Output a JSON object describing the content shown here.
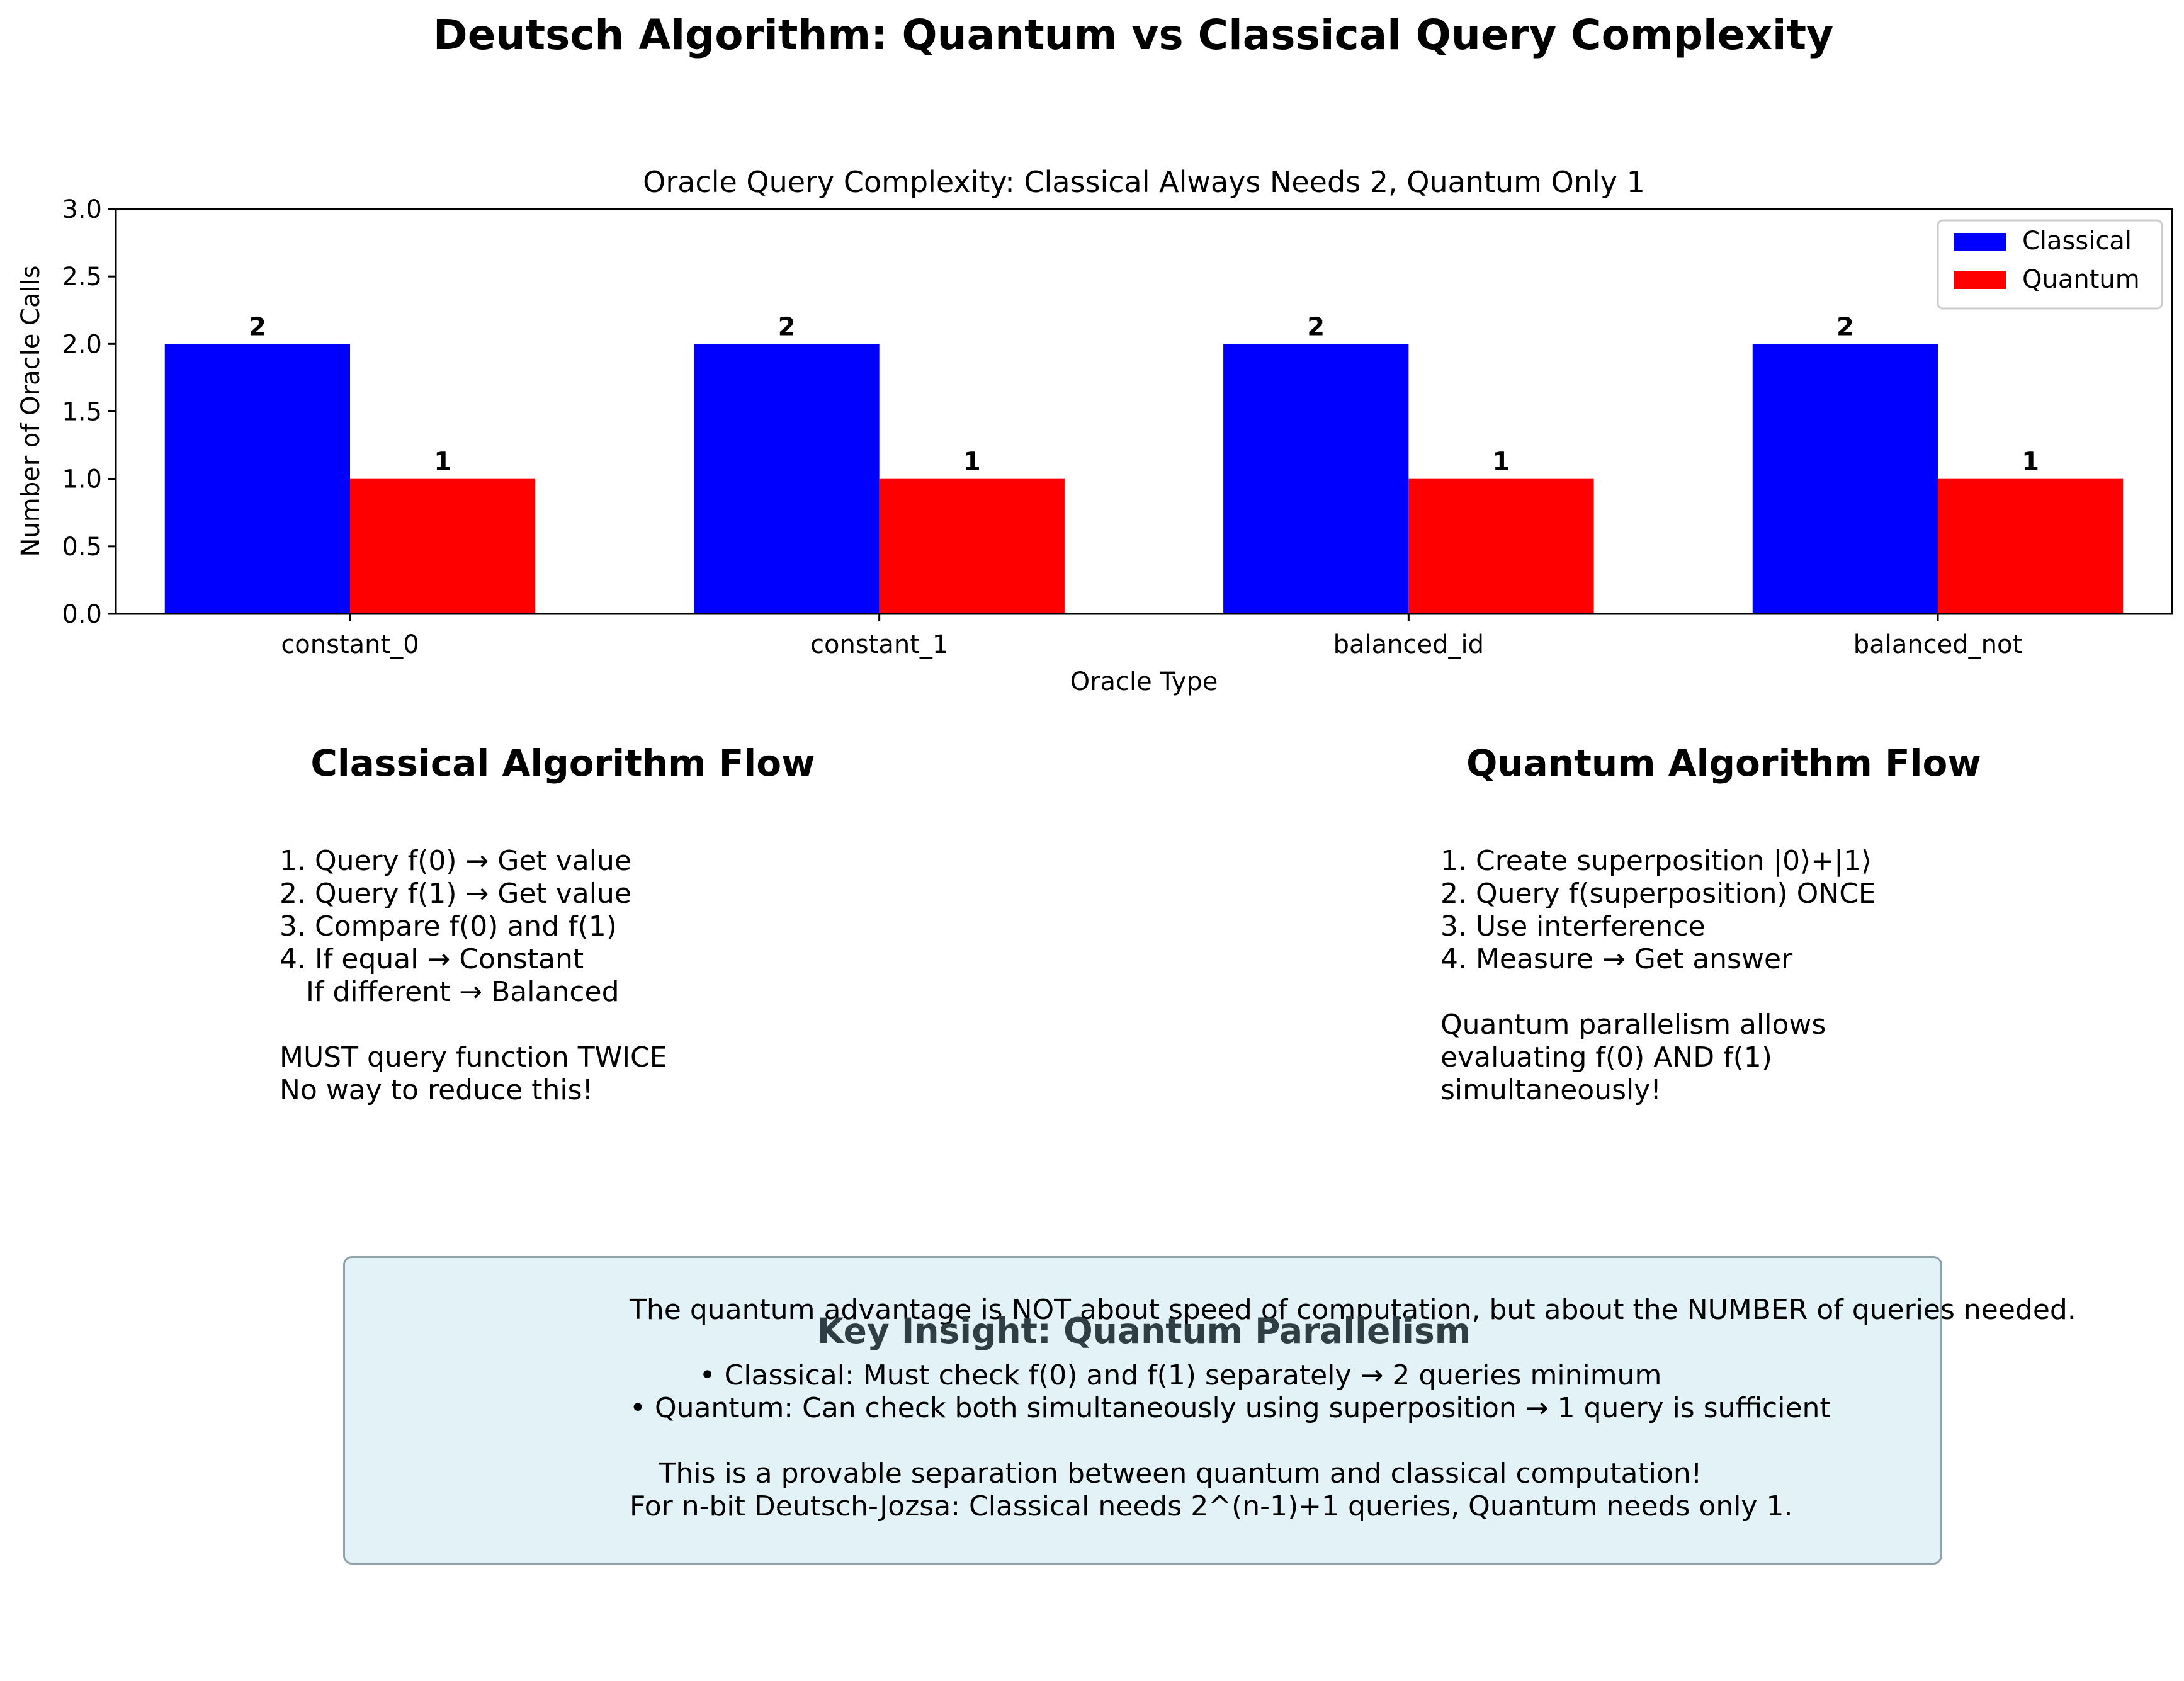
{
  "figure_title": "Deutsch Algorithm: Quantum vs Classical Query Complexity",
  "chart_data": {
    "type": "bar",
    "title": "Oracle Query Complexity: Classical Always Needs 2, Quantum Only 1",
    "xlabel": "Oracle Type",
    "ylabel": "Number of Oracle Calls",
    "categories": [
      "constant_0",
      "constant_1",
      "balanced_id",
      "balanced_not"
    ],
    "series": [
      {
        "name": "Classical",
        "values": [
          2,
          2,
          2,
          2
        ],
        "color": "#0000ff"
      },
      {
        "name": "Quantum",
        "values": [
          1,
          1,
          1,
          1
        ],
        "color": "#ff0000"
      }
    ],
    "data_labels": {
      "Classical": [
        "2",
        "2",
        "2",
        "2"
      ],
      "Quantum": [
        "1",
        "1",
        "1",
        "1"
      ]
    },
    "ylim": [
      0,
      3.0
    ],
    "yticks": [
      "0.0",
      "0.5",
      "1.0",
      "1.5",
      "2.0",
      "2.5",
      "3.0"
    ],
    "grid": false,
    "legend": "top-right"
  },
  "classical_flow": {
    "title": "Classical Algorithm Flow",
    "text": "1. Query f(0) → Get value\n2. Query f(1) → Get value\n3. Compare f(0) and f(1)\n4. If equal → Constant\n   If different → Balanced\n\nMUST query function TWICE\nNo way to reduce this!"
  },
  "quantum_flow": {
    "title": "Quantum Algorithm Flow",
    "text": "1. Create superposition |0⟩+|1⟩\n2. Query f(superposition) ONCE\n3. Use interference\n4. Measure → Get answer\n\nQuantum parallelism allows\nevaluating f(0) AND f(1)\nsimultaneously!"
  },
  "key_insight": {
    "title": "Key Insight: Quantum Parallelism",
    "text": "The quantum advantage is NOT about speed of computation, but about the NUMBER of queries needed.\n\n• Classical: Must check f(0) and f(1) separately → 2 queries minimum\n• Quantum: Can check both simultaneously using superposition → 1 query is sufficient\n\nThis is a provable separation between quantum and classical computation!\nFor n-bit Deutsch-Jozsa: Classical needs 2^(n-1)+1 queries, Quantum needs only 1."
  }
}
